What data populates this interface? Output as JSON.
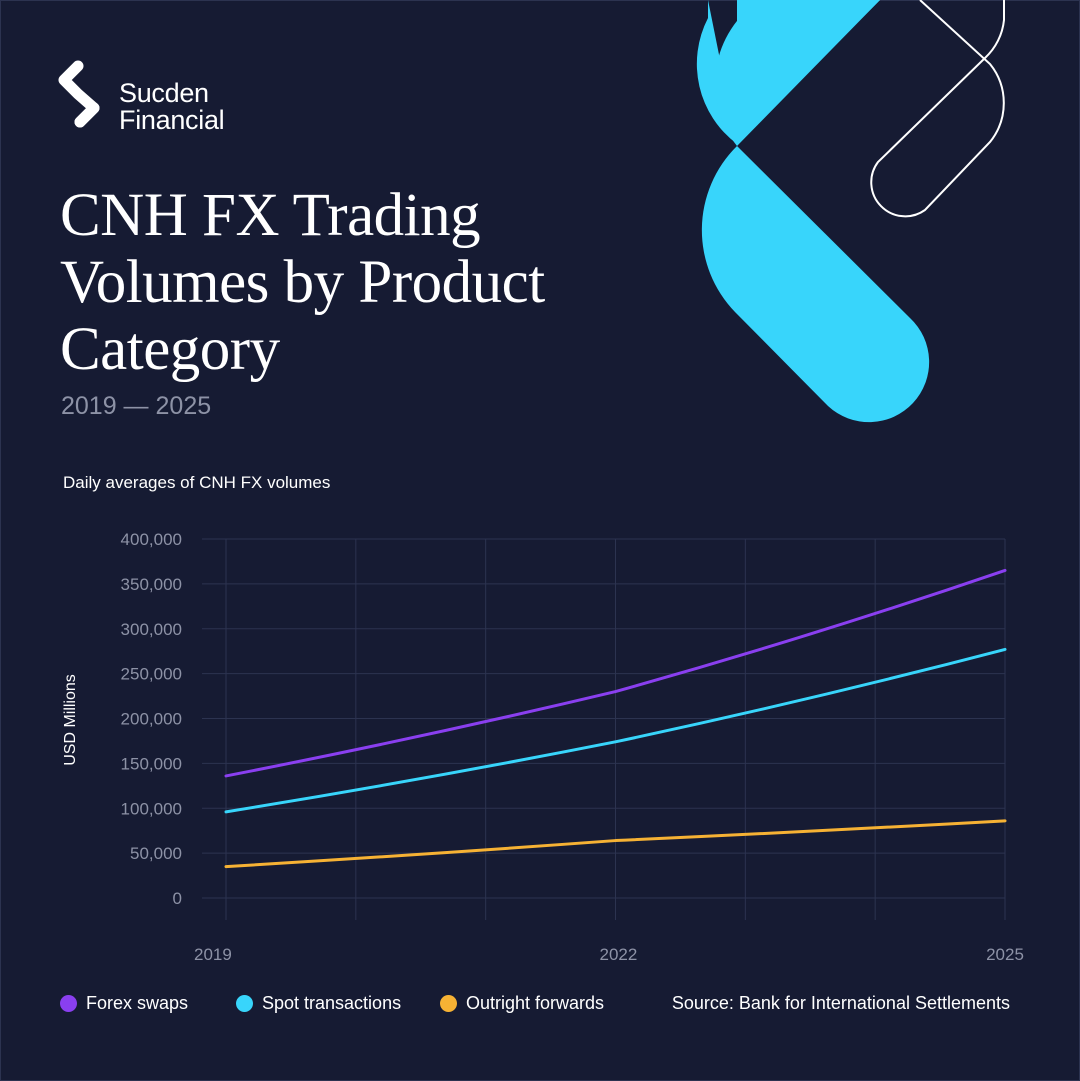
{
  "brand": {
    "line1": "Sucden",
    "line2": "Financial",
    "color": "#ffffff"
  },
  "header": {
    "title": "CNH FX Trading Volumes by Product Category",
    "subtitle": "2019 — 2025"
  },
  "chart_caption": "Daily averages of CNH FX volumes",
  "source": "Source: Bank for International Settlements",
  "colors": {
    "background": "#161b33",
    "grid": "#2c3350",
    "tick_text": "#8d92a6",
    "accent": "#38d5fb"
  },
  "chart_data": {
    "type": "line",
    "title": "",
    "xlabel": "",
    "ylabel": "USD Millions",
    "x": [
      2019,
      2022,
      2025
    ],
    "x_tick_labels": [
      "2019",
      "2022",
      "2025"
    ],
    "xlim": [
      2019,
      2025
    ],
    "ylim": [
      0,
      400000
    ],
    "y_ticks": [
      0,
      50000,
      100000,
      150000,
      200000,
      250000,
      300000,
      350000,
      400000
    ],
    "y_tick_labels": [
      "0",
      "50,000",
      "100,000",
      "150,000",
      "200,000",
      "250,000",
      "300,000",
      "350,000",
      "400,000"
    ],
    "grid": true,
    "legend": "bottom",
    "series": [
      {
        "name": "Forex swaps",
        "color": "#8a3ff0",
        "values": [
          136000,
          230000,
          365000
        ]
      },
      {
        "name": "Spot transactions",
        "color": "#38d5fb",
        "values": [
          96000,
          174000,
          277000
        ]
      },
      {
        "name": "Outright forwards",
        "color": "#f6b234",
        "values": [
          35000,
          64000,
          86000
        ]
      }
    ]
  }
}
